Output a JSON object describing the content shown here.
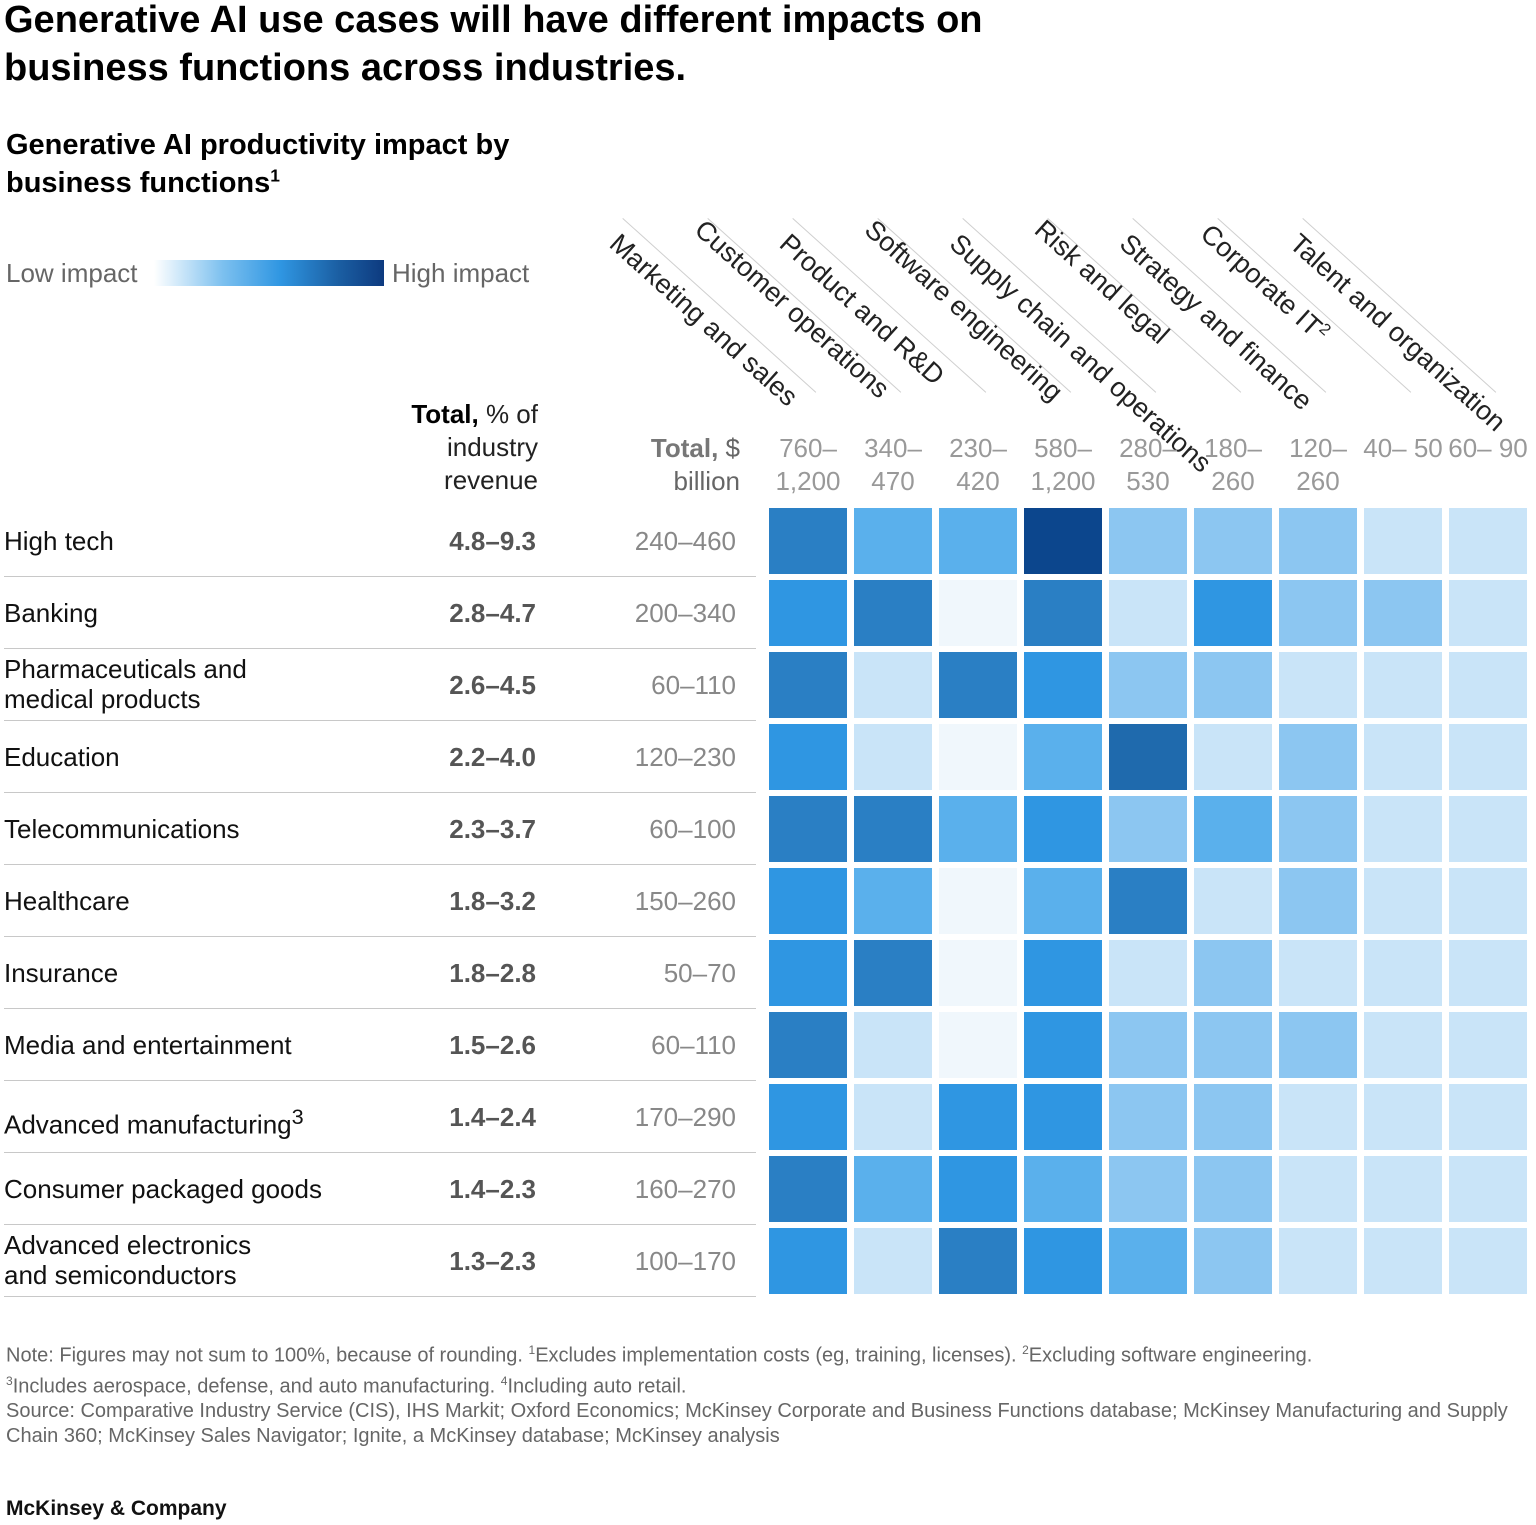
{
  "headline": "Generative AI use cases will have different impacts on business functions across industries.",
  "chart_data": {
    "type": "heatmap",
    "title": "Generative AI productivity impact by business functions",
    "title_sup": "1",
    "legend": {
      "low": "Low impact",
      "high": "High impact"
    },
    "column_headers": {
      "total_pct_bold": "Total,",
      "total_pct_rest": "% of industry revenue",
      "total_usd_bold": "Total,",
      "total_usd_rest": "$ billion"
    },
    "functions": [
      {
        "name": "Marketing and sales",
        "sup": "",
        "value": "760– 1,200"
      },
      {
        "name": "Customer operations",
        "sup": "",
        "value": "340– 470"
      },
      {
        "name": "Product and R&D",
        "sup": "",
        "value": "230– 420"
      },
      {
        "name": "Software engineering",
        "sup": "",
        "value": "580– 1,200"
      },
      {
        "name": "Supply chain and operations",
        "sup": "",
        "value": "280– 530"
      },
      {
        "name": "Risk and legal",
        "sup": "",
        "value": "180– 260"
      },
      {
        "name": "Strategy and finance",
        "sup": "",
        "value": "120– 260"
      },
      {
        "name": "Corporate IT",
        "sup": "2",
        "value": "40– 50"
      },
      {
        "name": "Talent and organization",
        "sup": "",
        "value": "60– 90"
      }
    ],
    "industries": [
      {
        "name": "High tech",
        "sup": "",
        "pct": "4.8–9.3",
        "usd": "240–460",
        "impact": [
          0.68,
          0.38,
          0.4,
          1.0,
          0.22,
          0.25,
          0.22,
          0.13,
          0.14
        ]
      },
      {
        "name": "Banking",
        "sup": "",
        "pct": "2.8–4.7",
        "usd": "200–340",
        "impact": [
          0.6,
          0.72,
          0.05,
          0.76,
          0.14,
          0.56,
          0.24,
          0.26,
          0.2
        ]
      },
      {
        "name": "Pharmaceuticals and medical products",
        "sup": "",
        "pct": "2.6–4.5",
        "usd": "60–110",
        "impact": [
          0.66,
          0.14,
          0.78,
          0.6,
          0.28,
          0.25,
          0.2,
          0.14,
          0.13
        ]
      },
      {
        "name": "Education",
        "sup": "",
        "pct": "2.2–4.0",
        "usd": "120–230",
        "impact": [
          0.6,
          0.16,
          0.05,
          0.4,
          0.88,
          0.14,
          0.28,
          0.14,
          0.14
        ]
      },
      {
        "name": "Telecommunications",
        "sup": "",
        "pct": "2.3–3.7",
        "usd": "60–100",
        "impact": [
          0.7,
          0.66,
          0.42,
          0.56,
          0.22,
          0.36,
          0.3,
          0.13,
          0.14
        ]
      },
      {
        "name": "Healthcare",
        "sup": "",
        "pct": "1.8–3.2",
        "usd": "150–260",
        "impact": [
          0.62,
          0.46,
          0.05,
          0.4,
          0.7,
          0.14,
          0.3,
          0.13,
          0.1
        ]
      },
      {
        "name": "Insurance",
        "sup": "",
        "pct": "1.8–2.8",
        "usd": "50–70",
        "impact": [
          0.62,
          0.7,
          0.05,
          0.62,
          0.14,
          0.34,
          0.2,
          0.13,
          0.14
        ]
      },
      {
        "name": "Media and entertainment",
        "sup": "",
        "pct": "1.5–2.6",
        "usd": "60–110",
        "impact": [
          0.7,
          0.16,
          0.05,
          0.62,
          0.24,
          0.34,
          0.3,
          0.14,
          0.13
        ]
      },
      {
        "name": "Advanced manufacturing",
        "sup": "3",
        "pct": "1.4–2.4",
        "usd": "170–290",
        "impact": [
          0.62,
          0.18,
          0.64,
          0.56,
          0.34,
          0.24,
          0.2,
          0.14,
          0.13
        ]
      },
      {
        "name": "Consumer packaged goods",
        "sup": "",
        "pct": "1.4–2.3",
        "usd": "160–270",
        "impact": [
          0.66,
          0.46,
          0.5,
          0.42,
          0.3,
          0.24,
          0.2,
          0.14,
          0.13
        ]
      },
      {
        "name": "Advanced electronics and semiconductors",
        "sup": "",
        "pct": "1.3–2.3",
        "usd": "100–170",
        "impact": [
          0.6,
          0.16,
          0.66,
          0.5,
          0.36,
          0.24,
          0.2,
          0.14,
          0.13
        ]
      }
    ]
  },
  "notes": {
    "line1_a": "Note: Figures may not sum to 100%, because of rounding. ",
    "line1_b_sup": "1",
    "line1_b": "Excludes implementation costs (eg, training, licenses). ",
    "line1_c_sup": "2",
    "line1_c": "Excluding software engineering.",
    "line2_a_sup": "3",
    "line2_a": "Includes aerospace, defense, and auto manufacturing. ",
    "line2_b_sup": "4",
    "line2_b": "Including auto retail.",
    "source": "Source: Comparative Industry Service (CIS), IHS Markit; Oxford Economics; McKinsey Corporate and Business Functions database; McKinsey Manufacturing and Supply Chain 360; McKinsey Sales Navigator; Ignite, a McKinsey database; McKinsey analysis"
  },
  "brand": "McKinsey & Company",
  "colors": {
    "scale": [
      "#f0f7fc",
      "#c9e4f8",
      "#8cc6f1",
      "#5ab0ec",
      "#2f96e2",
      "#2a7fc4",
      "#1f6aad",
      "#0c468d"
    ]
  }
}
